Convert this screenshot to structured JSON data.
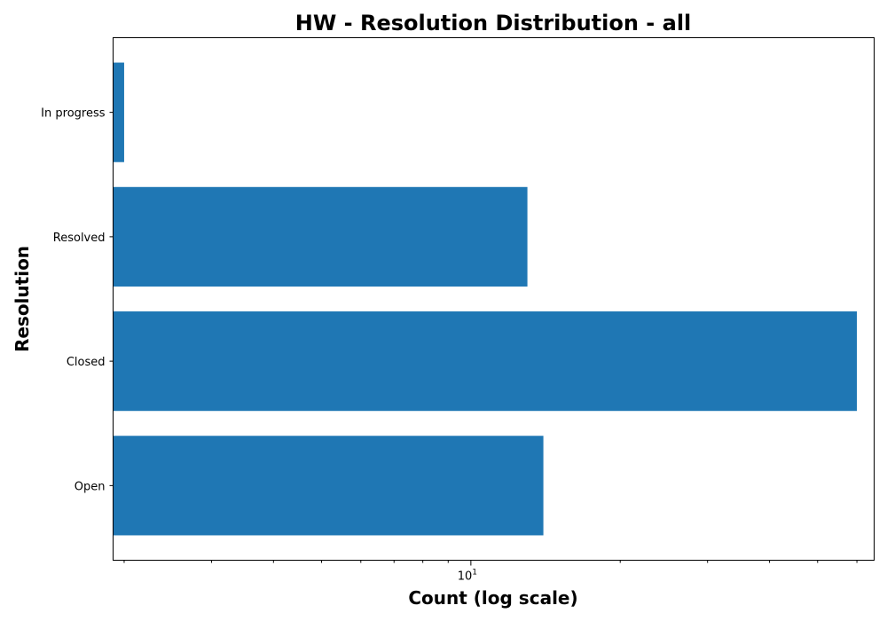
{
  "chart_data": {
    "type": "bar",
    "orientation": "horizontal",
    "title": "HW - Resolution Distribution - all",
    "xlabel": "Count (log scale)",
    "ylabel": "Resolution",
    "x_scale": "log",
    "xlim": [
      1.9,
      65
    ],
    "categories": [
      "Open",
      "Closed",
      "Resolved",
      "In progress"
    ],
    "values": [
      14,
      60,
      13,
      2
    ],
    "x_ticks": [
      {
        "value": 10,
        "base": "10",
        "exp": "1"
      }
    ],
    "grid": false,
    "bar_color": "#1f77b4"
  }
}
